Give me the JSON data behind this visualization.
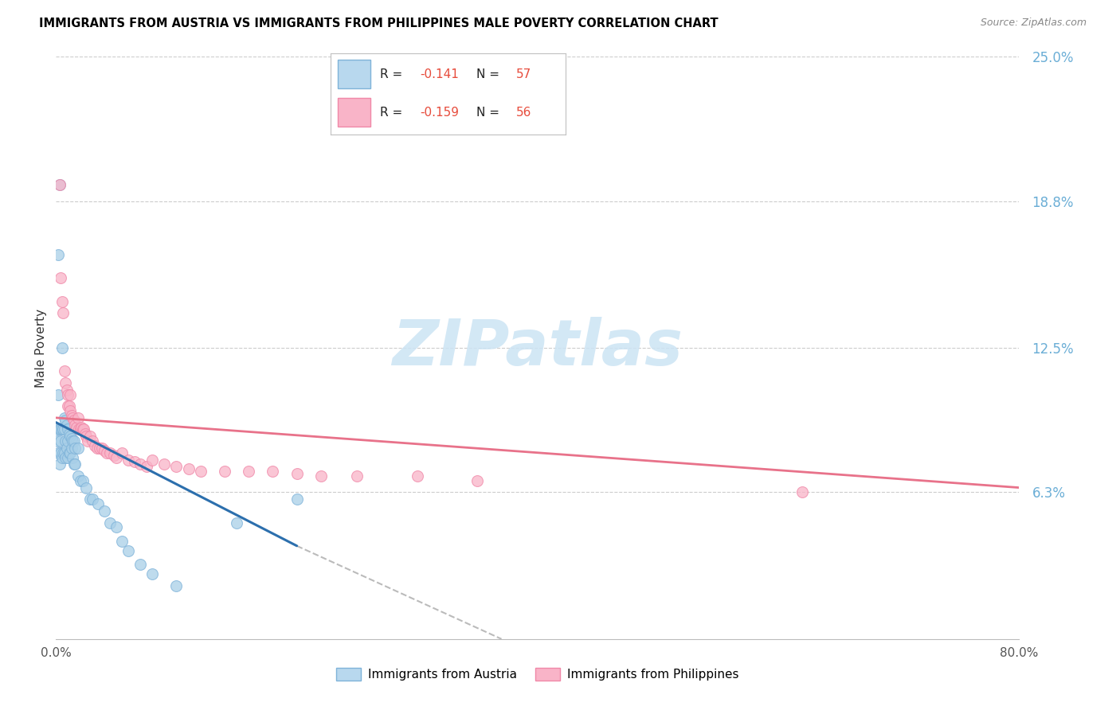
{
  "title": "IMMIGRANTS FROM AUSTRIA VS IMMIGRANTS FROM PHILIPPINES MALE POVERTY CORRELATION CHART",
  "source": "Source: ZipAtlas.com",
  "ylabel": "Male Poverty",
  "x_min": 0.0,
  "x_max": 0.8,
  "y_min": 0.0,
  "y_max": 0.25,
  "x_tick_positions": [
    0.0,
    0.1,
    0.2,
    0.3,
    0.4,
    0.5,
    0.6,
    0.7,
    0.8
  ],
  "x_tick_labels": [
    "0.0%",
    "",
    "",
    "",
    "",
    "",
    "",
    "",
    "80.0%"
  ],
  "y_tick_labels_right": [
    "25.0%",
    "18.8%",
    "12.5%",
    "6.3%"
  ],
  "y_ticks_right": [
    0.25,
    0.188,
    0.125,
    0.063
  ],
  "austria_R": "-0.141",
  "austria_N": "57",
  "philippines_R": "-0.159",
  "philippines_N": "56",
  "austria_color": "#a8cfe8",
  "austria_edge_color": "#7fb3d9",
  "austria_line_color": "#2c6fad",
  "philippines_color": "#f9b4c8",
  "philippines_edge_color": "#f088a8",
  "philippines_line_color": "#e8728a",
  "watermark_text": "ZIPatlas",
  "watermark_color": "#cce4f4",
  "austria_line_x0": 0.0,
  "austria_line_x1": 0.2,
  "austria_line_y0": 0.093,
  "austria_line_y1": 0.04,
  "dash_line_x0": 0.2,
  "dash_line_x1": 0.37,
  "dash_line_y0": 0.04,
  "dash_line_y1": 0.0,
  "philippines_line_x0": 0.0,
  "philippines_line_x1": 0.8,
  "philippines_line_y0": 0.095,
  "philippines_line_y1": 0.065,
  "austria_x": [
    0.001,
    0.001,
    0.002,
    0.002,
    0.002,
    0.003,
    0.003,
    0.003,
    0.004,
    0.004,
    0.004,
    0.005,
    0.005,
    0.005,
    0.006,
    0.006,
    0.007,
    0.007,
    0.007,
    0.008,
    0.008,
    0.008,
    0.009,
    0.009,
    0.01,
    0.01,
    0.01,
    0.011,
    0.011,
    0.012,
    0.012,
    0.013,
    0.013,
    0.014,
    0.014,
    0.015,
    0.015,
    0.016,
    0.016,
    0.018,
    0.018,
    0.02,
    0.022,
    0.025,
    0.028,
    0.03,
    0.035,
    0.04,
    0.045,
    0.05,
    0.055,
    0.06,
    0.07,
    0.08,
    0.1,
    0.15,
    0.2
  ],
  "austria_y": [
    0.09,
    0.085,
    0.165,
    0.105,
    0.08,
    0.195,
    0.09,
    0.075,
    0.09,
    0.085,
    0.08,
    0.125,
    0.09,
    0.078,
    0.09,
    0.08,
    0.095,
    0.09,
    0.08,
    0.094,
    0.085,
    0.078,
    0.092,
    0.082,
    0.09,
    0.085,
    0.078,
    0.088,
    0.08,
    0.087,
    0.08,
    0.086,
    0.082,
    0.085,
    0.078,
    0.085,
    0.075,
    0.082,
    0.075,
    0.082,
    0.07,
    0.068,
    0.068,
    0.065,
    0.06,
    0.06,
    0.058,
    0.055,
    0.05,
    0.048,
    0.042,
    0.038,
    0.032,
    0.028,
    0.023,
    0.05,
    0.06
  ],
  "philippines_x": [
    0.003,
    0.004,
    0.005,
    0.006,
    0.007,
    0.008,
    0.009,
    0.01,
    0.01,
    0.011,
    0.012,
    0.012,
    0.013,
    0.014,
    0.015,
    0.016,
    0.017,
    0.018,
    0.019,
    0.02,
    0.021,
    0.022,
    0.023,
    0.024,
    0.025,
    0.026,
    0.028,
    0.03,
    0.032,
    0.034,
    0.036,
    0.038,
    0.04,
    0.042,
    0.045,
    0.048,
    0.05,
    0.055,
    0.06,
    0.065,
    0.07,
    0.075,
    0.08,
    0.09,
    0.1,
    0.11,
    0.12,
    0.14,
    0.16,
    0.18,
    0.2,
    0.22,
    0.25,
    0.3,
    0.35,
    0.62
  ],
  "philippines_y": [
    0.195,
    0.155,
    0.145,
    0.14,
    0.115,
    0.11,
    0.107,
    0.105,
    0.1,
    0.1,
    0.105,
    0.098,
    0.096,
    0.095,
    0.094,
    0.092,
    0.091,
    0.095,
    0.09,
    0.09,
    0.091,
    0.09,
    0.09,
    0.088,
    0.087,
    0.085,
    0.087,
    0.085,
    0.083,
    0.082,
    0.082,
    0.082,
    0.081,
    0.08,
    0.08,
    0.079,
    0.078,
    0.08,
    0.077,
    0.076,
    0.075,
    0.074,
    0.077,
    0.075,
    0.074,
    0.073,
    0.072,
    0.072,
    0.072,
    0.072,
    0.071,
    0.07,
    0.07,
    0.07,
    0.068,
    0.063
  ]
}
